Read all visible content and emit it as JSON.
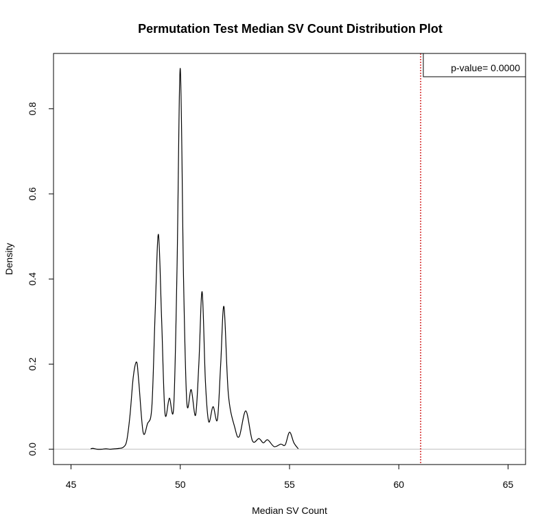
{
  "chart_data": {
    "type": "line",
    "title": "Permutation Test Median SV Count Distribution Plot",
    "xlabel": "Median SV Count",
    "ylabel": "Density",
    "xlim": [
      44.2,
      65.8
    ],
    "ylim": [
      -0.036,
      0.93
    ],
    "x_ticks": [
      45,
      50,
      55,
      60,
      65
    ],
    "y_ticks": [
      0.0,
      0.2,
      0.4,
      0.6,
      0.8
    ],
    "x_tick_labels": [
      "45",
      "50",
      "55",
      "60",
      "65"
    ],
    "y_tick_labels": [
      "0.0",
      "0.2",
      "0.4",
      "0.6",
      "0.8"
    ],
    "grid": false,
    "legend_position": "top-right",
    "series": [
      {
        "color": "#000000",
        "x": [
          45.9,
          46.0,
          46.2,
          46.4,
          46.6,
          46.8,
          47.0,
          47.2,
          47.4,
          47.55,
          47.7,
          47.85,
          48.0,
          48.1,
          48.3,
          48.5,
          48.7,
          48.85,
          49.0,
          49.15,
          49.3,
          49.5,
          49.7,
          49.85,
          50.0,
          50.15,
          50.3,
          50.5,
          50.7,
          50.85,
          51.0,
          51.15,
          51.3,
          51.5,
          51.7,
          51.85,
          52.0,
          52.2,
          52.5,
          52.7,
          53.0,
          53.3,
          53.6,
          53.8,
          54.0,
          54.3,
          54.6,
          54.8,
          55.0,
          55.2,
          55.4
        ],
        "y": [
          0.001,
          0.002,
          0.0,
          0.0,
          0.001,
          0.0,
          0.001,
          0.002,
          0.005,
          0.02,
          0.08,
          0.17,
          0.205,
          0.16,
          0.04,
          0.06,
          0.1,
          0.32,
          0.505,
          0.3,
          0.085,
          0.12,
          0.1,
          0.42,
          0.895,
          0.4,
          0.11,
          0.14,
          0.08,
          0.2,
          0.37,
          0.16,
          0.065,
          0.1,
          0.07,
          0.2,
          0.335,
          0.13,
          0.05,
          0.03,
          0.09,
          0.02,
          0.025,
          0.015,
          0.022,
          0.006,
          0.012,
          0.01,
          0.04,
          0.015,
          0.001
        ]
      }
    ],
    "reference_line": {
      "x": 61,
      "color": "#cc0000",
      "style": "dotted"
    },
    "baseline": {
      "y": 0,
      "color": "#bebebe"
    },
    "annotations": [
      {
        "text": "p-value= 0.0000",
        "position": "top-right",
        "boxed": true
      }
    ]
  }
}
